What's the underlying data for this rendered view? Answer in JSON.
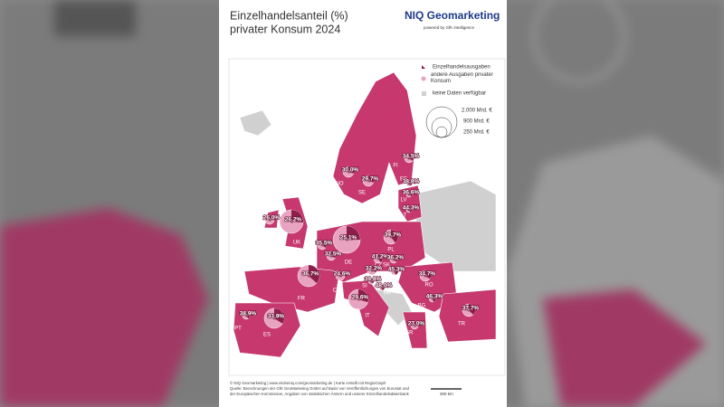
{
  "header": {
    "title_line1": "Einzelhandelsanteil (%)",
    "title_line2": "privater Konsum 2024",
    "logo": "NIQ Geomarketing",
    "logo_sub": "powered by GfK intelligence"
  },
  "legend": {
    "items": [
      "Einzelhandelsausgaben",
      "andere Ausgaben privater Konsum",
      "keine Daten verfügbar"
    ],
    "sizes": [
      "2.000 Mrd. €",
      "900 Mrd. €",
      "250 Mrd. €"
    ]
  },
  "countries": [
    {
      "code": "FI",
      "share": 34.5,
      "label": "34,5%"
    },
    {
      "code": "NO",
      "share": 30.0,
      "label": "30,0%"
    },
    {
      "code": "SE",
      "share": 29.7,
      "label": "29,7%"
    },
    {
      "code": "EE",
      "share": 38.8,
      "label": "38,8%"
    },
    {
      "code": "LV",
      "share": 36.6,
      "label": "36,6%"
    },
    {
      "code": "LT",
      "share": 44.3,
      "label": "44,3%"
    },
    {
      "code": "IE",
      "share": 26.0,
      "label": "26,0%"
    },
    {
      "code": "UK",
      "share": 26.2,
      "label": "26,2%"
    },
    {
      "code": "NL",
      "share": 35.5,
      "label": "35,5%"
    },
    {
      "code": "BE",
      "share": 32.5,
      "label": "32,5%"
    },
    {
      "code": "DE",
      "share": 25.1,
      "label": "25,1%"
    },
    {
      "code": "PL",
      "share": 39.7,
      "label": "39,7%"
    },
    {
      "code": "CZ",
      "share": 41.2,
      "label": "41,2%"
    },
    {
      "code": "SK",
      "share": 36.2,
      "label": "36,2%"
    },
    {
      "code": "FR",
      "share": 36.7,
      "label": "36,7%"
    },
    {
      "code": "CH",
      "share": 24.6,
      "label": "24,6%"
    },
    {
      "code": "AT",
      "share": 32.2,
      "label": "32,2%"
    },
    {
      "code": "HU",
      "share": 45.3,
      "label": "45,3%"
    },
    {
      "code": "SI",
      "share": 39.8,
      "label": "39,8%"
    },
    {
      "code": "HR",
      "share": 48.0,
      "label": "48,0%"
    },
    {
      "code": "RO",
      "share": 34.7,
      "label": "34,7%"
    },
    {
      "code": "BG",
      "share": 46.3,
      "label": "46,3%"
    },
    {
      "code": "IT",
      "share": 29.6,
      "label": "29,6%"
    },
    {
      "code": "PT",
      "share": 38.9,
      "label": "38,9%"
    },
    {
      "code": "ES",
      "share": 33.9,
      "label": "33,9%"
    },
    {
      "code": "TR",
      "share": 37.7,
      "label": "37,7%"
    },
    {
      "code": "GR",
      "share": 27.0,
      "label": "27,0%"
    }
  ],
  "footer": {
    "line1": "© NIQ Geomarketing | www.nielseniq.com/geomarketing.de | Karte erstellt mit RegioGraph",
    "line2": "Quelle: Berechnungen der GfK GeoMarketing GmbH auf Basis von Veröffentlichungen von Eurostat und",
    "line3": "der Europäischen Kommission, Angaben von statistischen Ämtern und unserer Einzelhandelsdatenbank",
    "scale": "300 km"
  }
}
